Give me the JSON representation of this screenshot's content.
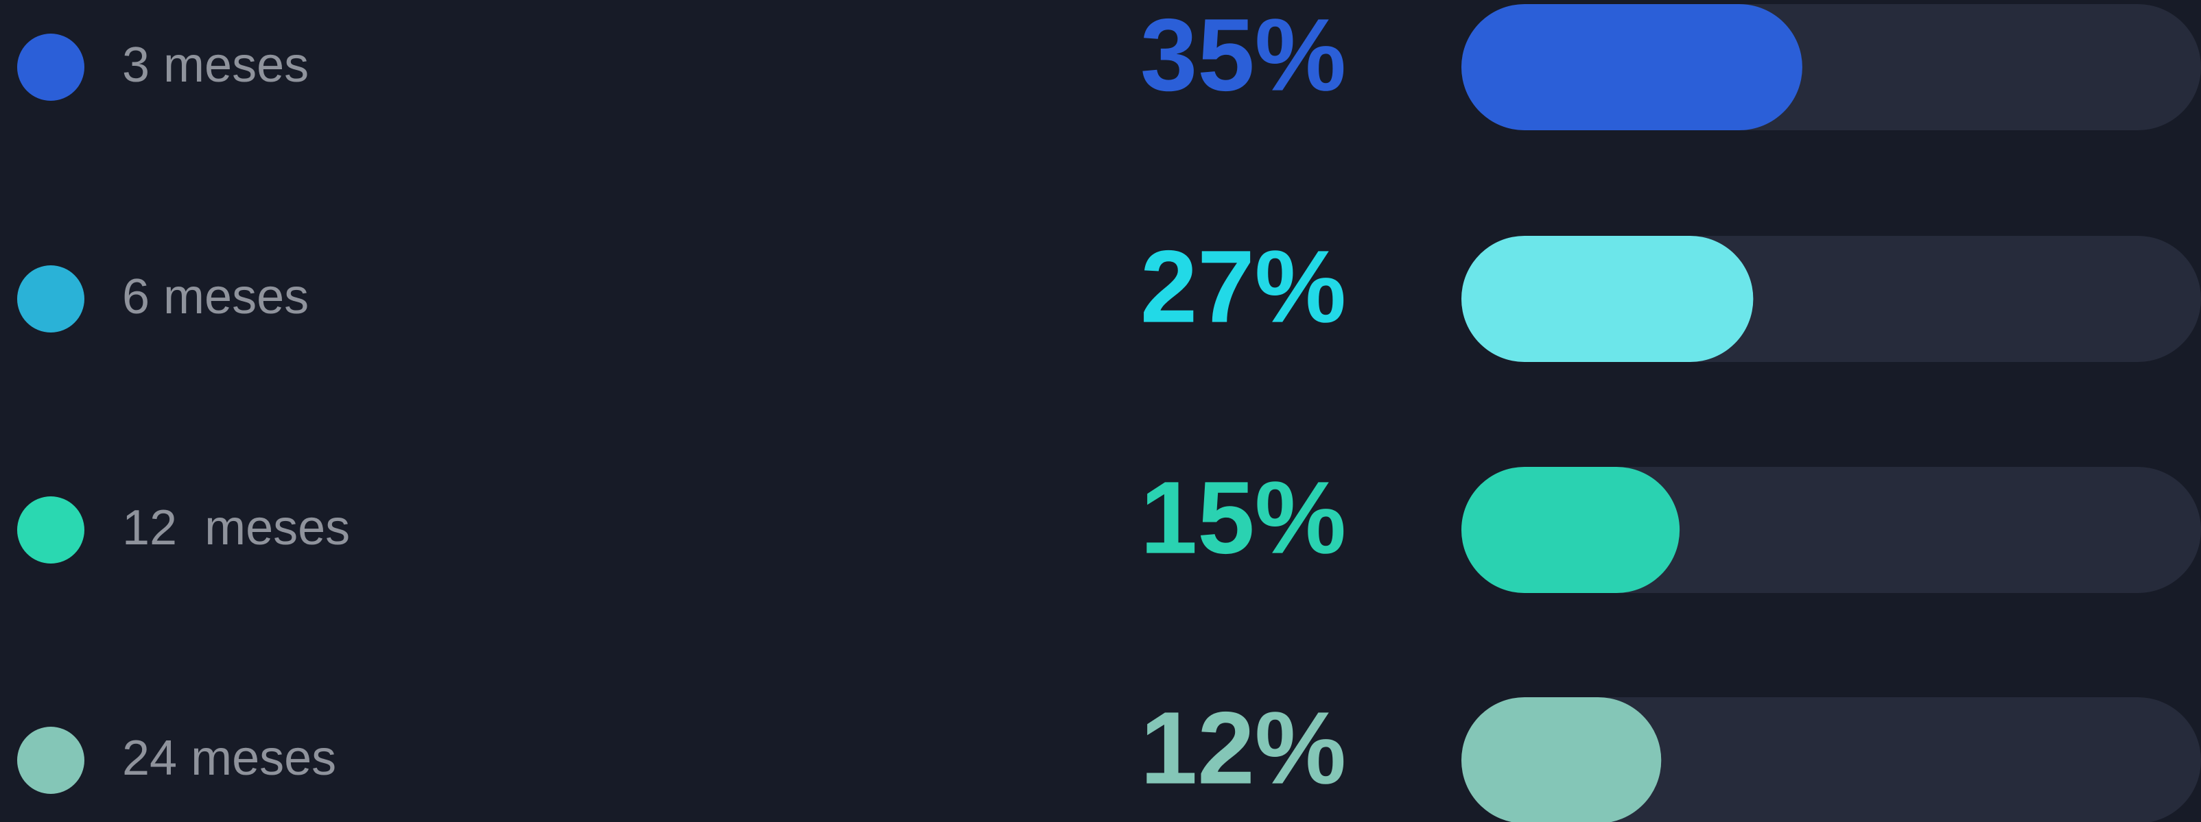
{
  "chart_data": {
    "type": "bar",
    "orientation": "horizontal",
    "categories": [
      "3 meses",
      "6 meses",
      "12  meses",
      "24 meses"
    ],
    "values": [
      35,
      27,
      15,
      12
    ],
    "value_labels": [
      "35%",
      "27%",
      "15%",
      "12%"
    ],
    "colors": [
      "#2b5fd8",
      "#6ce6ea",
      "#2ad2b1",
      "#84c6b7"
    ],
    "text_colors": [
      "#2b5fd8",
      "#22d9e7",
      "#2ad2b1",
      "#84c6b7"
    ],
    "marker_colors": [
      "#2b5fd8",
      "#2ab2d7",
      "#2ad8b1",
      "#84c6b7"
    ],
    "xlim": [
      0,
      100
    ]
  }
}
